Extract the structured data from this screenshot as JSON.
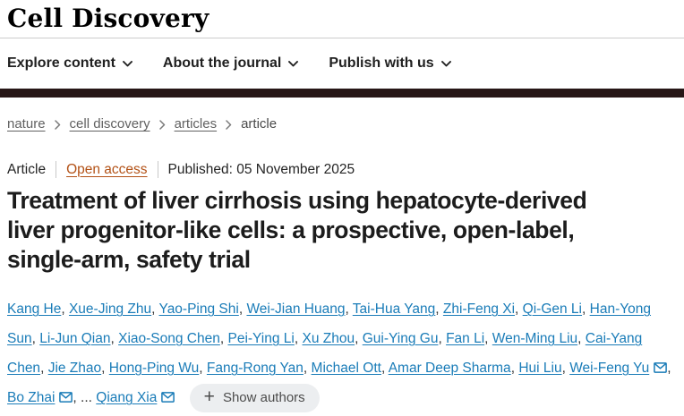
{
  "masthead": {
    "title": "Cell Discovery"
  },
  "nav": {
    "items": [
      {
        "label": "Explore content"
      },
      {
        "label": "About the journal"
      },
      {
        "label": "Publish with us"
      }
    ]
  },
  "breadcrumb": {
    "items": [
      "nature",
      "cell discovery",
      "articles",
      "article"
    ]
  },
  "meta": {
    "type_label": "Article",
    "access_label": "Open access",
    "published_label": "Published:",
    "published_date": "05 November 2025"
  },
  "title": {
    "lines": [
      "Treatment of liver cirrhosis using hepatocyte-derived",
      "liver progenitor-like cells: a prospective, open-label,",
      "single-arm, safety trial"
    ]
  },
  "authors": {
    "list": [
      {
        "name": "Kang He",
        "email": false
      },
      {
        "name": "Xue-Jing Zhu",
        "email": false
      },
      {
        "name": "Yao-Ping Shi",
        "email": false
      },
      {
        "name": "Wei-Jian Huang",
        "email": false
      },
      {
        "name": "Tai-Hua Yang",
        "email": false
      },
      {
        "name": "Zhi-Feng Xi",
        "email": false
      },
      {
        "name": "Qi-Gen Li",
        "email": false
      },
      {
        "name": "Han-Yong Sun",
        "email": false
      },
      {
        "name": "Li-Jun Qian",
        "email": false
      },
      {
        "name": "Xiao-Song Chen",
        "email": false
      },
      {
        "name": "Pei-Ying Li",
        "email": false
      },
      {
        "name": "Xu Zhou",
        "email": false
      },
      {
        "name": "Gui-Ying Gu",
        "email": false
      },
      {
        "name": "Fan Li",
        "email": false
      },
      {
        "name": "Wen-Ming Liu",
        "email": false
      },
      {
        "name": "Cai-Yang Chen",
        "email": false
      },
      {
        "name": "Jie Zhao",
        "email": false
      },
      {
        "name": "Hong-Ping Wu",
        "email": false
      },
      {
        "name": "Fang-Rong Yan",
        "email": false
      },
      {
        "name": "Michael Ott",
        "email": false
      },
      {
        "name": "Amar Deep Sharma",
        "email": false
      },
      {
        "name": "Hui Liu",
        "email": false
      },
      {
        "name": "Wei-Feng Yu",
        "email": true
      },
      {
        "name": "Bo Zhai",
        "email": true
      },
      {
        "name": "Qiang Xia",
        "email": true
      }
    ],
    "ellipsis": "...",
    "plus": "+",
    "show_authors_label": "Show authors"
  },
  "colors": {
    "bar_dark": "#271717",
    "link_blue": "#1a7cb8",
    "open_access": "#b35217"
  }
}
